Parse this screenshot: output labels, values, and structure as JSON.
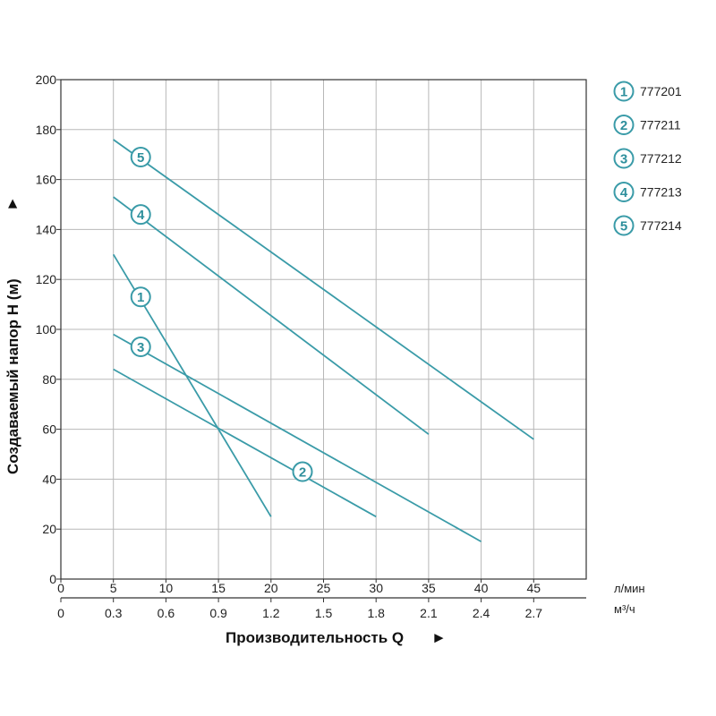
{
  "chart_data": {
    "type": "line",
    "xlabel": "Производительность Q",
    "xlabel_arrow": "►",
    "ylabel": "Создаваемый напор H (м)",
    "ylabel_arrow": "►",
    "x_unit_primary": "л/мин",
    "x_unit_secondary": "м³/ч",
    "xlim": [
      0,
      50
    ],
    "ylim": [
      0,
      200
    ],
    "grid": true,
    "legend_position": "right",
    "y_ticks": [
      "0",
      "20",
      "40",
      "60",
      "80",
      "100",
      "120",
      "140",
      "160",
      "180",
      "200"
    ],
    "x_ticks_primary": [
      "0",
      "5",
      "10",
      "15",
      "20",
      "25",
      "30",
      "35",
      "40",
      "45"
    ],
    "x_ticks_secondary": [
      "0",
      "0.3",
      "0.6",
      "0.9",
      "1.2",
      "1.5",
      "1.8",
      "2.1",
      "2.4",
      "2.7"
    ],
    "line_color": "#3a9ba8",
    "series": [
      {
        "marker": "1",
        "name": "777201",
        "x": [
          5,
          20
        ],
        "y": [
          130,
          25
        ],
        "label_at": [
          7.6,
          113
        ]
      },
      {
        "marker": "2",
        "name": "777211",
        "x": [
          5,
          30
        ],
        "y": [
          84,
          25
        ],
        "label_at": [
          23,
          43
        ]
      },
      {
        "marker": "3",
        "name": "777212",
        "x": [
          5,
          40
        ],
        "y": [
          98,
          15
        ],
        "label_at": [
          7.6,
          93
        ]
      },
      {
        "marker": "4",
        "name": "777213",
        "x": [
          5,
          35
        ],
        "y": [
          153,
          58
        ],
        "label_at": [
          7.6,
          146
        ]
      },
      {
        "marker": "5",
        "name": "777214",
        "x": [
          5,
          45
        ],
        "y": [
          176,
          56
        ],
        "label_at": [
          7.6,
          169
        ]
      }
    ]
  }
}
